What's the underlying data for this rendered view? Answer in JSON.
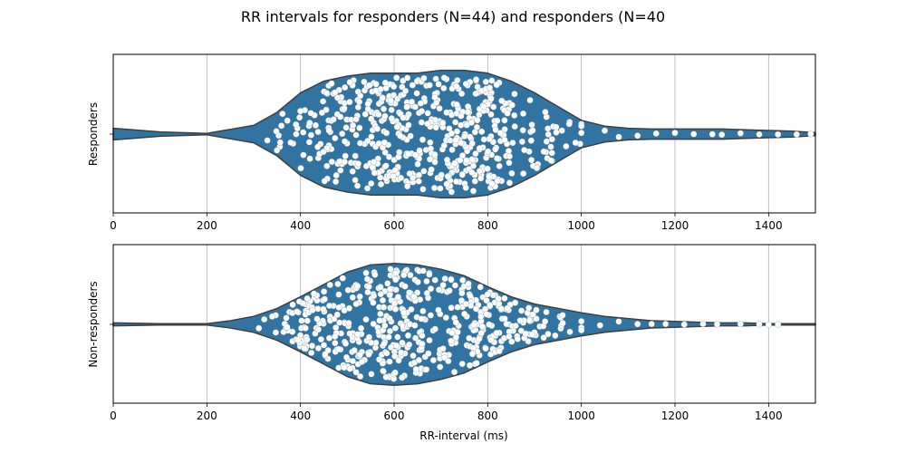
{
  "figure": {
    "title": "RR intervals for responders (N=44) and responders (N=40"
  },
  "chart_data": [
    {
      "type": "violin+swarm",
      "ylabel": "Responders",
      "xlabel": "",
      "xlim": [
        0,
        1500
      ],
      "xticks": [
        0,
        200,
        400,
        600,
        800,
        1000,
        1200,
        1400
      ],
      "grid": true,
      "violin_color": "#3274a1",
      "point_color": "#ffffff",
      "density": {
        "x": [
          0,
          20,
          100,
          200,
          300,
          350,
          400,
          450,
          500,
          550,
          600,
          650,
          700,
          750,
          800,
          850,
          900,
          950,
          1000,
          1050,
          1100,
          1150,
          1200,
          1250,
          1300,
          1350,
          1400,
          1450,
          1500
        ],
        "half_width": [
          0.08,
          0.07,
          0.03,
          0.01,
          0.12,
          0.3,
          0.57,
          0.73,
          0.8,
          0.84,
          0.84,
          0.84,
          0.88,
          0.88,
          0.84,
          0.73,
          0.57,
          0.38,
          0.19,
          0.11,
          0.08,
          0.07,
          0.07,
          0.07,
          0.07,
          0.06,
          0.05,
          0.04,
          0.02
        ]
      },
      "points": {
        "count": 560,
        "centers_ms": [
          480,
          560,
          620,
          720,
          780,
          880
        ],
        "spreads_ms": [
          60,
          55,
          50,
          55,
          45,
          70
        ],
        "weights": [
          0.16,
          0.17,
          0.14,
          0.2,
          0.17,
          0.16
        ],
        "tail_ms": [
          1000,
          1050,
          1080,
          1120,
          1160,
          1200,
          1240,
          1280,
          1300,
          1340,
          1380,
          1420,
          1460,
          1490
        ]
      }
    },
    {
      "type": "violin+swarm",
      "ylabel": "Non-responders",
      "xlabel": "RR-interval (ms)",
      "xlim": [
        0,
        1500
      ],
      "xticks": [
        0,
        200,
        400,
        600,
        800,
        1000,
        1200,
        1400
      ],
      "grid": true,
      "violin_color": "#3274a1",
      "point_color": "#ffffff",
      "density": {
        "x": [
          0,
          100,
          200,
          250,
          300,
          350,
          400,
          450,
          500,
          550,
          600,
          650,
          700,
          750,
          800,
          850,
          900,
          950,
          1000,
          1050,
          1100,
          1150,
          1200,
          1250,
          1300,
          1350,
          1400,
          1450,
          1500
        ],
        "half_width": [
          0.02,
          0.01,
          0.01,
          0.05,
          0.11,
          0.22,
          0.38,
          0.55,
          0.72,
          0.82,
          0.84,
          0.82,
          0.76,
          0.67,
          0.52,
          0.38,
          0.28,
          0.22,
          0.16,
          0.11,
          0.08,
          0.05,
          0.04,
          0.03,
          0.02,
          0.02,
          0.01,
          0.01,
          0.01
        ]
      },
      "points": {
        "count": 520,
        "centers_ms": [
          420,
          510,
          600,
          680,
          790,
          880
        ],
        "spreads_ms": [
          50,
          50,
          45,
          50,
          55,
          70
        ],
        "weights": [
          0.12,
          0.17,
          0.22,
          0.19,
          0.18,
          0.12
        ],
        "tail_ms": [
          960,
          1000,
          1040,
          1080,
          1120,
          1150,
          1180,
          1220,
          1260,
          1290,
          1340,
          1380,
          1400,
          1420
        ]
      }
    }
  ]
}
